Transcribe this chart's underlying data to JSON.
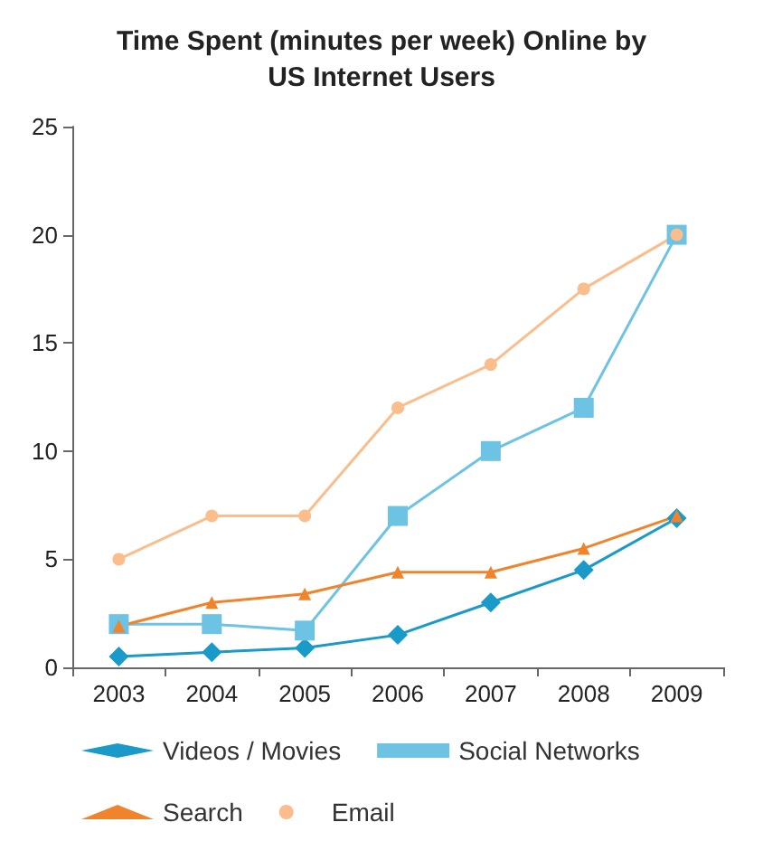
{
  "chart_data": {
    "type": "line",
    "title": "Time Spent (minutes per week) Online by\nUS Internet Users",
    "categories": [
      "2003",
      "2004",
      "2005",
      "2006",
      "2007",
      "2008",
      "2009"
    ],
    "series": [
      {
        "name": "Videos / Movies",
        "color": "#1a9ac9",
        "marker": "diamond",
        "values": [
          0.5,
          0.7,
          0.9,
          1.5,
          3,
          4.5,
          6.9
        ]
      },
      {
        "name": "Social Networks",
        "color": "#6cc3e3",
        "marker": "square",
        "values": [
          2,
          2,
          1.7,
          7,
          10,
          12,
          20
        ]
      },
      {
        "name": "Search",
        "color": "#f0842c",
        "marker": "triangle",
        "values": [
          1.9,
          3,
          3.4,
          4.4,
          4.4,
          5.5,
          7
        ]
      },
      {
        "name": "Email",
        "color": "#fbbd8c",
        "marker": "circle",
        "values": [
          5,
          7,
          7,
          12,
          14,
          17.5,
          20
        ]
      }
    ],
    "ylim": [
      0,
      25
    ],
    "yticks": [
      0,
      5,
      10,
      15,
      20,
      25
    ],
    "grid": false,
    "legend": "bottom"
  }
}
